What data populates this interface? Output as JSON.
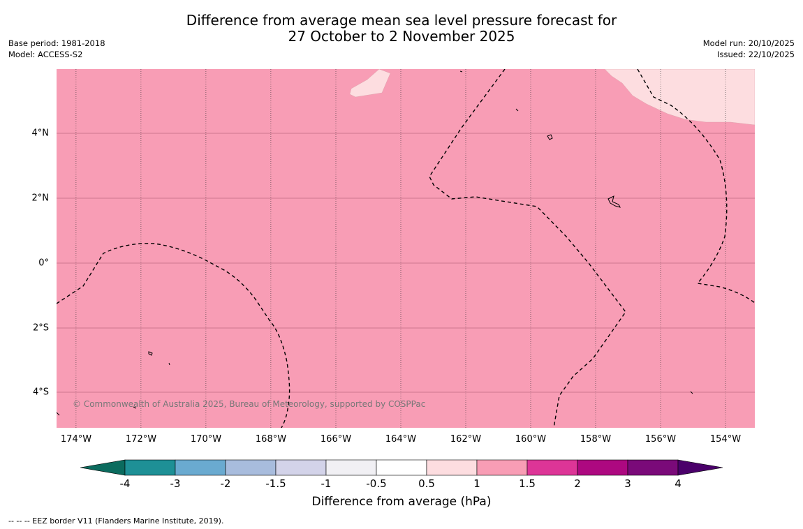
{
  "title": {
    "line1": "Difference from average mean sea level pressure forecast for",
    "line2": "27 October to 2 November 2025"
  },
  "meta_left": {
    "base_period": "Base period: 1981-2018",
    "model": "Model: ACCESS-S2"
  },
  "meta_right": {
    "model_run": "Model run: 20/10/2025",
    "issued": "Issued: 22/10/2025"
  },
  "map": {
    "extent": {
      "lon_west": -174.6,
      "lon_east": -153.1,
      "lat_south": -5.15,
      "lat_north": 5.9
    },
    "background_color": "#f89db5",
    "patch_color": "#fddde0",
    "lon_ticks": [
      {
        "value": -174,
        "label": "174°W"
      },
      {
        "value": -172,
        "label": "172°W"
      },
      {
        "value": -170,
        "label": "170°W"
      },
      {
        "value": -168,
        "label": "168°W"
      },
      {
        "value": -166,
        "label": "166°W"
      },
      {
        "value": -164,
        "label": "164°W"
      },
      {
        "value": -162,
        "label": "162°W"
      },
      {
        "value": -160,
        "label": "160°W"
      },
      {
        "value": -158,
        "label": "158°W"
      },
      {
        "value": -156,
        "label": "156°W"
      },
      {
        "value": -154,
        "label": "154°W"
      }
    ],
    "lat_ticks": [
      {
        "value": 4,
        "label": "4°N"
      },
      {
        "value": 2,
        "label": "2°N"
      },
      {
        "value": 0,
        "label": "0°"
      },
      {
        "value": -2,
        "label": "2°S"
      },
      {
        "value": -4,
        "label": "4°S"
      }
    ],
    "copyright": "© Commonwealth of Australia 2025, Bureau of Meteorology, supported by COSPPac"
  },
  "colorbar": {
    "title": "Difference from average (hPa)",
    "ticks": [
      "-4",
      "-3",
      "-2",
      "-1.5",
      "-1",
      "-0.5",
      "0.5",
      "1",
      "1.5",
      "2",
      "3",
      "4"
    ],
    "colors": {
      "lt_m4": "#0b6b5e",
      "m4_m3": "#1e9096",
      "m3_m2": "#6aaad0",
      "m2_m15": "#a8bcdd",
      "m15_m1": "#d3d3e9",
      "m1_m05": "#f1f0f4",
      "m05_05": "#ffffff",
      "p05_1": "#fddde0",
      "p1_15": "#f89db5",
      "p15_2": "#dd3597",
      "p2_3": "#ad0880",
      "p3_4": "#7a0a79",
      "gt_4": "#4a006a"
    }
  },
  "eez_note": "-- -- -- EEZ border V11 (Flanders Marine Institute, 2019)."
}
